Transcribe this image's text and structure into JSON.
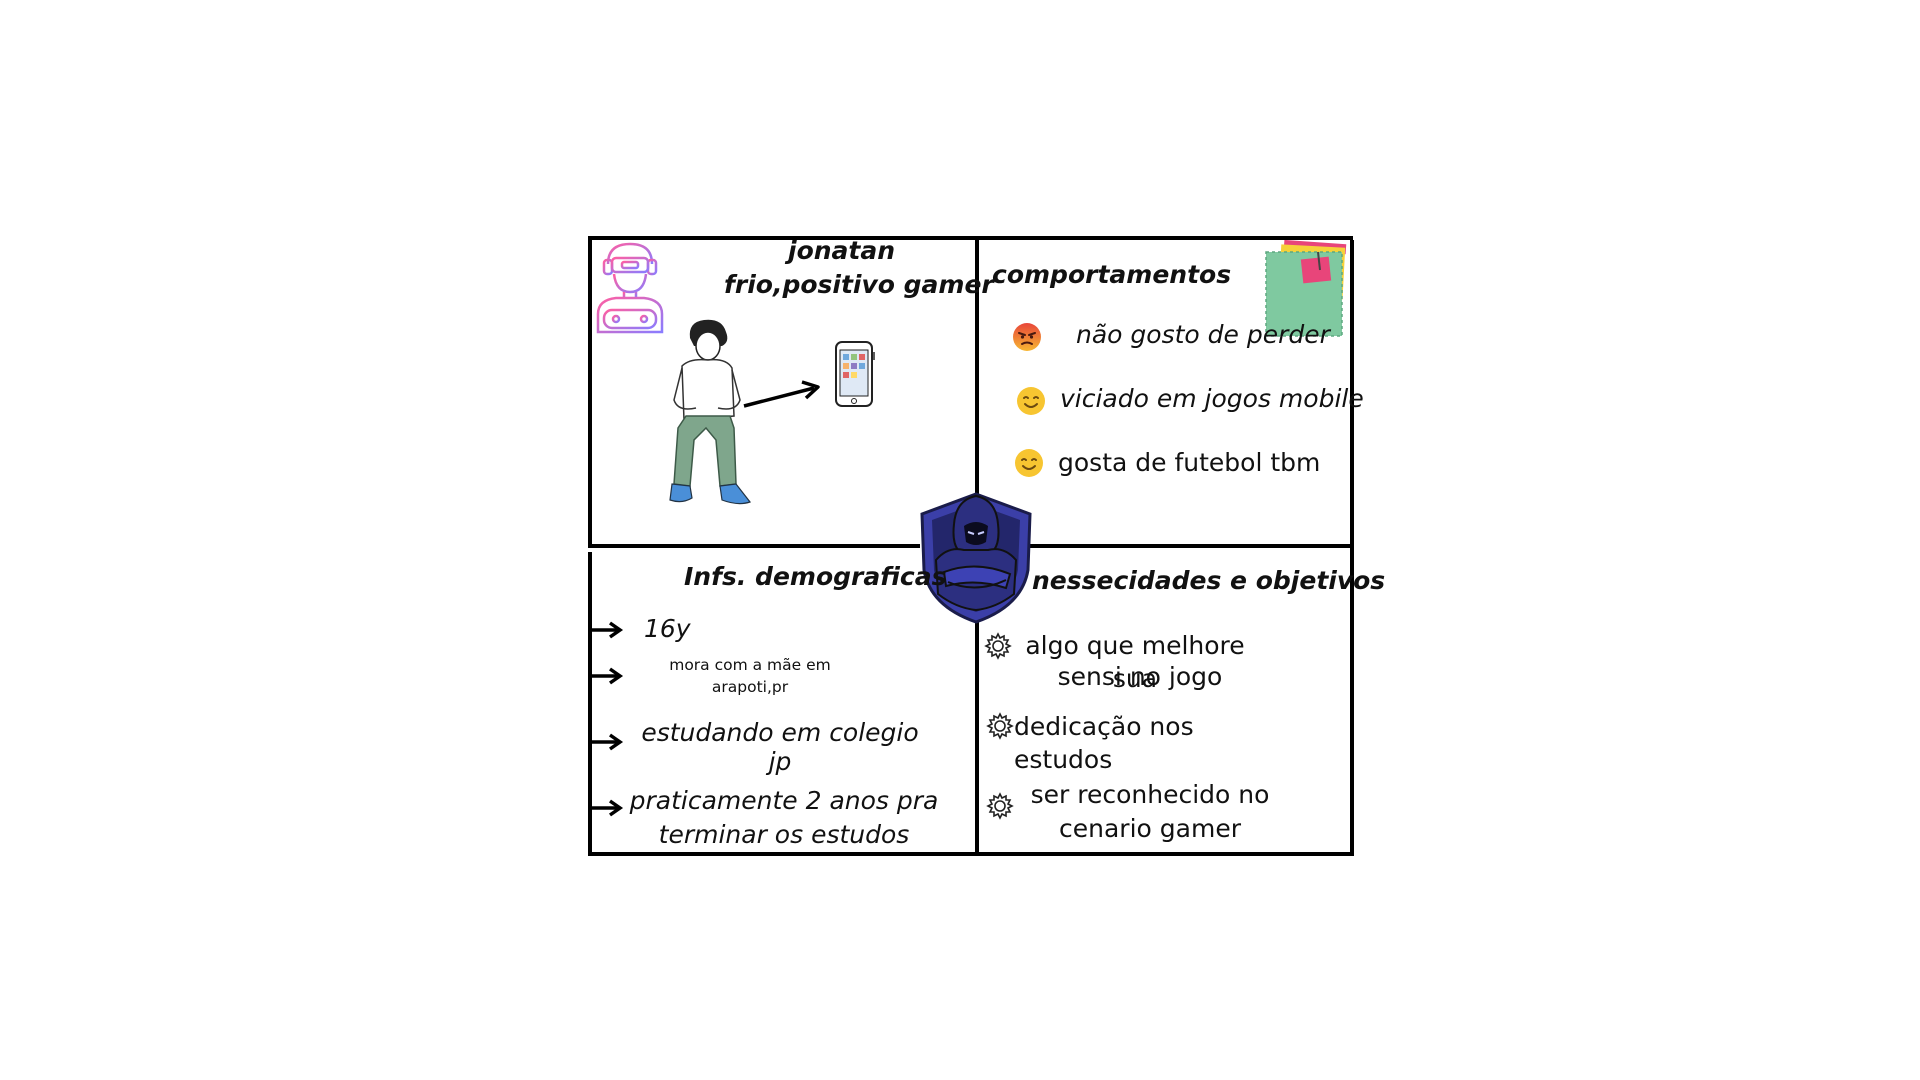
{
  "persona": {
    "name": "jonatan",
    "tagline": "frio,positivo gamer"
  },
  "behaviors": {
    "title": "comportamentos",
    "items": [
      {
        "text": "não gosto de perder",
        "icon": "angry-face-icon",
        "italic": true
      },
      {
        "text": "viciado em jogos mobile",
        "icon": "smiling-face-icon",
        "italic": true
      },
      {
        "text": "gosta de futebol tbm",
        "icon": "smiling-face-icon",
        "italic": false
      }
    ]
  },
  "demographics": {
    "title": "Infs. demograficas",
    "age": "16y",
    "residence_line1": "mora com a mãe em",
    "residence_line2": "arapoti,pr",
    "school": "estudando em colegio jp",
    "remaining_line1": "praticamente 2 anos pra",
    "remaining_line2": "terminar os estudos"
  },
  "goals": {
    "title": "nessecidades e objetivos",
    "item1_line1": "algo que melhore sua",
    "item1_line2": "sensi no jogo",
    "item2": "dedicação nos estudos",
    "item3_line1": "ser reconhecido no",
    "item3_line2": "cenario gamer"
  },
  "colors": {
    "border": "#000000",
    "sticky_green": "#7fc9a0",
    "sticky_pink": "#e8457a",
    "sticky_yellow": "#f6d13a",
    "mascot_navy": "#23266b",
    "mascot_blue": "#3b3fa8",
    "gamer_icon_gradient_start": "#ff5fa2",
    "gamer_icon_gradient_end": "#8a7cff"
  }
}
